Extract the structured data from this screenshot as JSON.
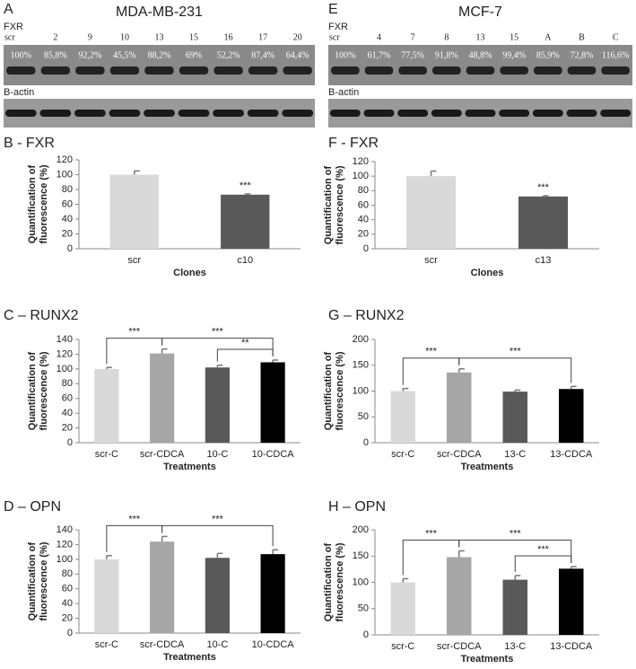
{
  "blots": [
    {
      "panel": "A",
      "title": "MDA-MB-231",
      "protein": "FXR",
      "lanes": [
        "scr",
        "2",
        "9",
        "10",
        "13",
        "15",
        "16",
        "17",
        "20"
      ],
      "percents": [
        "100%",
        "85,8%",
        "92,2%",
        "45,5%",
        "88,2%",
        "69%",
        "52,2%",
        "87,4%",
        "64,4%"
      ],
      "control": "B-actin"
    },
    {
      "panel": "E",
      "title": "MCF-7",
      "protein": "FXR",
      "lanes": [
        "scr",
        "4",
        "7",
        "8",
        "13",
        "15",
        "A",
        "B",
        "C"
      ],
      "percents": [
        "100%",
        "61,7%",
        "77,5%",
        "91,8%",
        "48,8%",
        "99,4%",
        "85,9%",
        "72,8%",
        "116,6%"
      ],
      "control": "B-actin"
    }
  ],
  "chart_data": [
    {
      "type": "bar",
      "title": "B - FXR",
      "categories": [
        "scr",
        "c10"
      ],
      "values": [
        100,
        73
      ],
      "errors": [
        5,
        1
      ],
      "colors": [
        "#d9d9d9",
        "#595959"
      ],
      "ylim": [
        0,
        120
      ],
      "yticks": [
        0,
        20,
        40,
        60,
        80,
        100,
        120
      ],
      "ylabel": [
        "Quantification of",
        "fluorescence (%)"
      ],
      "xlabel": "Clones",
      "annotations": [
        {
          "from": 1,
          "to": 1,
          "text": "***"
        }
      ]
    },
    {
      "type": "bar",
      "title": "F - FXR",
      "categories": [
        "scr",
        "c13"
      ],
      "values": [
        100,
        72
      ],
      "errors": [
        7,
        1
      ],
      "colors": [
        "#d9d9d9",
        "#595959"
      ],
      "ylim": [
        0,
        120
      ],
      "yticks": [
        0,
        20,
        40,
        60,
        80,
        100,
        120
      ],
      "ylabel": [
        "Quantification of",
        "fluorescence (%)"
      ],
      "xlabel": "Clones",
      "annotations": [
        {
          "from": 1,
          "to": 1,
          "text": "***"
        }
      ]
    },
    {
      "type": "bar",
      "title": "C – RUNX2",
      "categories": [
        "scr-C",
        "scr-CDCA",
        "10-C",
        "10-CDCA"
      ],
      "values": [
        100,
        121,
        102,
        109
      ],
      "errors": [
        2,
        6,
        3,
        3
      ],
      "colors": [
        "#d9d9d9",
        "#a6a6a6",
        "#595959",
        "#000000"
      ],
      "ylim": [
        0,
        140
      ],
      "yticks": [
        0,
        20,
        40,
        60,
        80,
        100,
        120,
        140
      ],
      "ylabel": [
        "Quantification of",
        "fluorescence (%)"
      ],
      "xlabel": "Treatments",
      "annotations": [
        {
          "from": 0,
          "to": 1,
          "text": "***"
        },
        {
          "from": 1,
          "to": 3,
          "text": "***"
        },
        {
          "from": 2,
          "to": 3,
          "text": "**"
        }
      ]
    },
    {
      "type": "bar",
      "title": "G – RUNX2",
      "categories": [
        "scr-C",
        "scr-CDCA",
        "13-C",
        "13-CDCA"
      ],
      "values": [
        100,
        136,
        99,
        104
      ],
      "errors": [
        5,
        7,
        3,
        5
      ],
      "colors": [
        "#d9d9d9",
        "#a6a6a6",
        "#595959",
        "#000000"
      ],
      "ylim": [
        0,
        200
      ],
      "yticks": [
        0,
        50,
        100,
        150,
        200
      ],
      "ylabel": [
        "Quantification of",
        "fluorescence (%)"
      ],
      "xlabel": "Treatments",
      "annotations": [
        {
          "from": 0,
          "to": 1,
          "text": "***"
        },
        {
          "from": 1,
          "to": 3,
          "text": "***"
        }
      ]
    },
    {
      "type": "bar",
      "title": "D – OPN",
      "categories": [
        "scr-C",
        "scr-CDCA",
        "10-C",
        "10-CDCA"
      ],
      "values": [
        100,
        124,
        102,
        107
      ],
      "errors": [
        5,
        7,
        6,
        6
      ],
      "colors": [
        "#d9d9d9",
        "#a6a6a6",
        "#595959",
        "#000000"
      ],
      "ylim": [
        0,
        140
      ],
      "yticks": [
        0,
        20,
        40,
        60,
        80,
        100,
        120,
        140
      ],
      "ylabel": [
        "Quantification of",
        "fluorescence (%)"
      ],
      "xlabel": "Treatments",
      "annotations": [
        {
          "from": 0,
          "to": 1,
          "text": "***"
        },
        {
          "from": 1,
          "to": 3,
          "text": "***"
        }
      ]
    },
    {
      "type": "bar",
      "title": "H – OPN",
      "categories": [
        "scr-C",
        "scr-CDCA",
        "13-C",
        "13-CDCA"
      ],
      "values": [
        100,
        148,
        105,
        126
      ],
      "errors": [
        7,
        12,
        8,
        4
      ],
      "colors": [
        "#d9d9d9",
        "#a6a6a6",
        "#595959",
        "#000000"
      ],
      "ylim": [
        0,
        200
      ],
      "yticks": [
        0,
        50,
        100,
        150,
        200
      ],
      "ylabel": [
        "Quantification of",
        "fluorescence (%)"
      ],
      "xlabel": "Treatments",
      "annotations": [
        {
          "from": 0,
          "to": 1,
          "text": "***"
        },
        {
          "from": 1,
          "to": 3,
          "text": "***"
        },
        {
          "from": 2,
          "to": 3,
          "text": "***"
        }
      ]
    }
  ]
}
